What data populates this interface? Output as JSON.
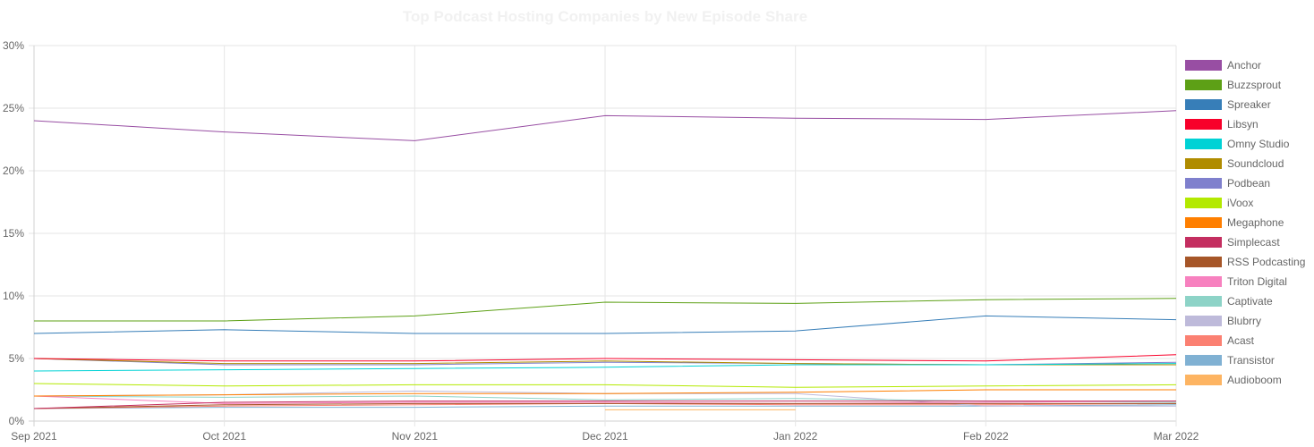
{
  "chart_data": {
    "type": "line",
    "title": "Top Podcast Hosting Companies by New Episode Share",
    "xlabel": "",
    "ylabel": "",
    "x": [
      "Sep 2021",
      "Oct 2021",
      "Nov 2021",
      "Dec 2021",
      "Jan 2022",
      "Feb 2022",
      "Mar 2022"
    ],
    "ylim": [
      0,
      30
    ],
    "yticks": [
      "0%",
      "5%",
      "10%",
      "15%",
      "20%",
      "25%",
      "30%"
    ],
    "grid": true,
    "legend_position": "right",
    "series": [
      {
        "name": "Anchor",
        "color": "#984ea3",
        "values": [
          24.0,
          23.1,
          22.4,
          24.4,
          24.2,
          24.1,
          24.8
        ]
      },
      {
        "name": "Buzzsprout",
        "color": "#5da016",
        "values": [
          8.0,
          8.0,
          8.4,
          9.5,
          9.4,
          9.7,
          9.8
        ]
      },
      {
        "name": "Spreaker",
        "color": "#377eb8",
        "values": [
          7.0,
          7.3,
          7.0,
          7.0,
          7.2,
          8.4,
          8.1
        ]
      },
      {
        "name": "Libsyn",
        "color": "#f8002a",
        "values": [
          5.0,
          4.8,
          4.8,
          5.0,
          4.9,
          4.8,
          5.3
        ]
      },
      {
        "name": "Omny Studio",
        "color": "#00d2d5",
        "values": [
          4.0,
          4.1,
          4.2,
          4.3,
          4.5,
          4.5,
          4.6
        ]
      },
      {
        "name": "Soundcloud",
        "color": "#b08c00",
        "values": [
          5.0,
          4.6,
          4.6,
          4.8,
          4.6,
          4.5,
          4.5
        ]
      },
      {
        "name": "Podbean",
        "color": "#7f80cd",
        "values": [
          5.0,
          4.5,
          4.5,
          4.7,
          4.6,
          4.5,
          4.7
        ]
      },
      {
        "name": "iVoox",
        "color": "#b3e900",
        "values": [
          3.0,
          2.8,
          2.9,
          2.9,
          2.7,
          2.8,
          2.9
        ]
      },
      {
        "name": "Megaphone",
        "color": "#ff7f00",
        "values": [
          2.0,
          2.1,
          2.2,
          2.2,
          2.3,
          2.5,
          2.5
        ]
      },
      {
        "name": "Simplecast",
        "color": "#c42e60",
        "values": [
          1.0,
          1.5,
          1.6,
          1.6,
          1.6,
          1.6,
          1.6
        ]
      },
      {
        "name": "RSS Podcasting",
        "color": "#a65628",
        "values": [
          1.0,
          1.3,
          1.4,
          1.4,
          1.4,
          1.4,
          1.4
        ]
      },
      {
        "name": "Triton Digital",
        "color": "#f781bf",
        "values": [
          2.0,
          1.4,
          1.5,
          1.5,
          1.4,
          1.5,
          1.6
        ]
      },
      {
        "name": "Captivate",
        "color": "#8dd3c7",
        "values": [
          2.0,
          1.9,
          2.0,
          1.7,
          1.8,
          1.6,
          1.5
        ]
      },
      {
        "name": "Blubrry",
        "color": "#bebada",
        "values": [
          2.0,
          2.1,
          2.4,
          2.2,
          2.2,
          1.2,
          1.2
        ]
      },
      {
        "name": "Acast",
        "color": "#fb8072",
        "values": [
          1.0,
          1.2,
          1.3,
          1.4,
          1.3,
          1.3,
          1.4
        ]
      },
      {
        "name": "Transistor",
        "color": "#80b1d3",
        "values": [
          1.0,
          1.1,
          1.1,
          1.2,
          1.2,
          1.2,
          1.3
        ]
      },
      {
        "name": "Audioboom",
        "color": "#fdb462",
        "values": [
          null,
          null,
          null,
          0.9,
          0.9,
          null,
          null
        ]
      }
    ]
  }
}
